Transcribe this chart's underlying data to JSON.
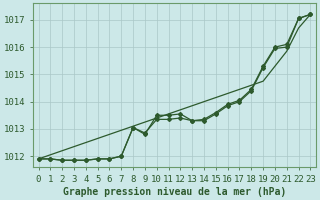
{
  "title": "Graphe pression niveau de la mer (hPa)",
  "bg_color": "#cce8e8",
  "grid_color": "#aac8c8",
  "line_color": "#2d5a2d",
  "x_labels": [
    "0",
    "1",
    "2",
    "3",
    "4",
    "5",
    "6",
    "7",
    "8",
    "9",
    "10",
    "11",
    "12",
    "13",
    "14",
    "15",
    "16",
    "17",
    "18",
    "19",
    "20",
    "21",
    "22",
    "23"
  ],
  "ylim": [
    1011.6,
    1017.6
  ],
  "yticks": [
    1012,
    1013,
    1014,
    1015,
    1016,
    1017
  ],
  "line_straight": [
    1011.9,
    1012.05,
    1012.2,
    1012.35,
    1012.5,
    1012.65,
    1012.8,
    1012.95,
    1013.1,
    1013.25,
    1013.4,
    1013.55,
    1013.7,
    1013.85,
    1014.0,
    1014.15,
    1014.3,
    1014.45,
    1014.6,
    1014.75,
    1015.3,
    1015.85,
    1016.7,
    1017.2
  ],
  "line_mid": [
    1011.9,
    1011.9,
    1011.85,
    1011.85,
    1011.85,
    1011.9,
    1011.9,
    1012.0,
    1013.05,
    1012.85,
    1013.35,
    1013.35,
    1013.4,
    1013.3,
    1013.35,
    1013.6,
    1013.9,
    1014.05,
    1014.45,
    1015.3,
    1016.0,
    1016.1,
    1017.05,
    1017.2
  ],
  "line_data": [
    1011.9,
    1011.9,
    1011.85,
    1011.85,
    1011.85,
    1011.9,
    1011.9,
    1012.0,
    1013.05,
    1012.8,
    1013.5,
    1013.5,
    1013.55,
    1013.3,
    1013.3,
    1013.55,
    1013.85,
    1014.0,
    1014.4,
    1015.25,
    1015.95,
    1016.0,
    1017.05,
    1017.2
  ],
  "xlabel_fontsize": 6.5,
  "ylabel_fontsize": 6.5,
  "title_fontsize": 7.0,
  "figwidth": 3.2,
  "figheight": 2.0,
  "dpi": 100
}
